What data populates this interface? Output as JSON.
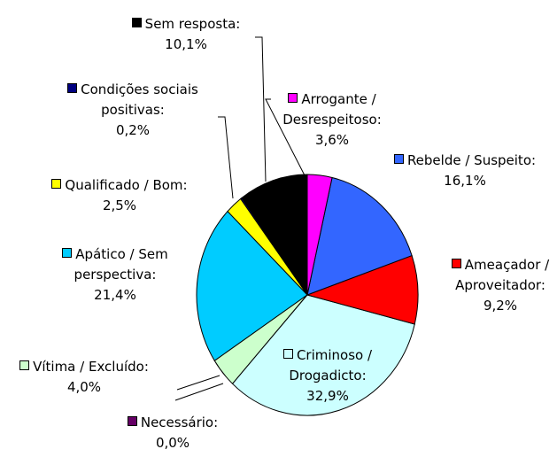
{
  "chart_data": {
    "type": "pie",
    "categories": [
      "Arrogante / Desrespeitoso:",
      "Rebelde / Suspeito:",
      "Ameaçador / Aproveitador:",
      "Criminoso / Drogadicto:",
      "Necessário:",
      "Vítima / Excluído:",
      "Apático / Sem perspectiva:",
      "Qualificado / Bom:",
      "Condições sociais positivas:",
      "Sem resposta:"
    ],
    "values": [
      3.6,
      16.1,
      9.2,
      32.9,
      0.0,
      4.0,
      21.4,
      2.5,
      0.2,
      10.1
    ],
    "value_labels": [
      "3,6%",
      "16,1%",
      "9,2%",
      "32,9%",
      "0,0%",
      "4,0%",
      "21,4%",
      "2,5%",
      "0,2%",
      "10,1%"
    ],
    "colors": [
      "#ff00ff",
      "#3366ff",
      "#ff0000",
      "#ccffff",
      "#660066",
      "#ccffcc",
      "#00ccff",
      "#ffff00",
      "#000080",
      "#000000"
    ]
  }
}
